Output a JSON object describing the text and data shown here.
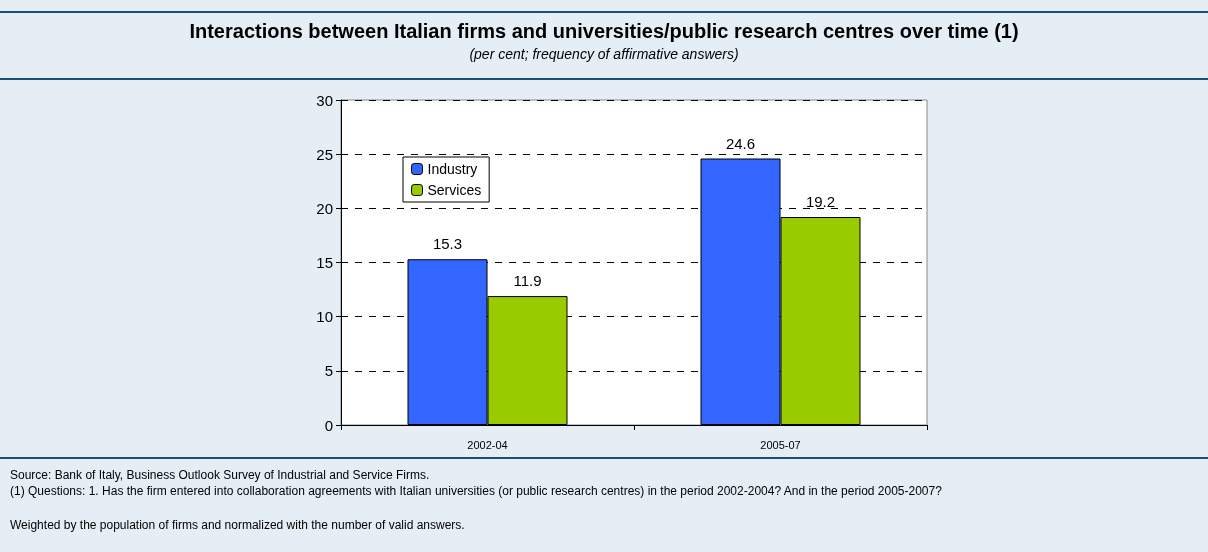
{
  "chart_data": {
    "type": "bar",
    "title": "Interactions between Italian firms and universities/public research centres over time (1)",
    "subtitle": "(per cent; frequency of affirmative answers)",
    "categories": [
      "2002-04",
      "2005-07"
    ],
    "series": [
      {
        "name": "Industry",
        "color": "#3366ff",
        "values": [
          15.3,
          24.6
        ]
      },
      {
        "name": "Services",
        "color": "#99cc00",
        "values": [
          11.9,
          19.2
        ]
      }
    ],
    "ylim": [
      0,
      30
    ],
    "yticks": [
      0,
      5,
      10,
      15,
      20,
      25,
      30
    ],
    "grid": "y",
    "legend": "top left",
    "data_labels": true,
    "annotations": [
      "Source: Bank of Italy, Business Outlook Survey of Industrial and Service Firms.",
      "(1) Questions: 1. Has the firm entered into collaboration agreements with Italian universities (or public research centres) in the period 2002-2004? And in the period 2005-2007?",
      "Weighted by the population of firms and normalized with the number of valid answers."
    ]
  }
}
